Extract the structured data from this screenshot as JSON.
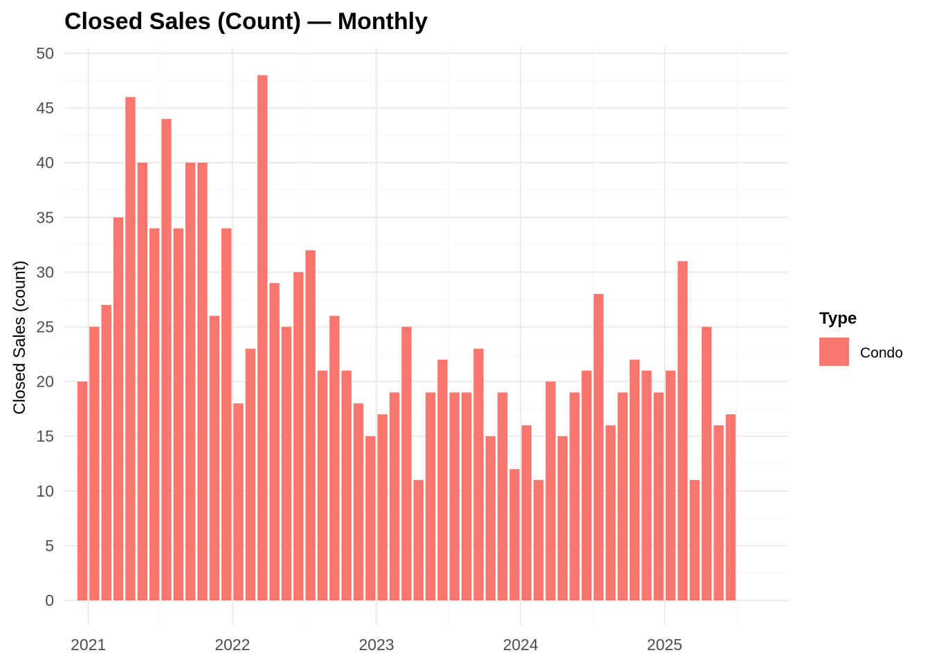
{
  "chart_data": {
    "type": "bar",
    "title": "Closed Sales (Count) — Monthly",
    "xlabel": "",
    "ylabel": "Closed Sales (count)",
    "ylim": [
      0,
      50
    ],
    "y_ticks": [
      0,
      5,
      10,
      15,
      20,
      25,
      30,
      35,
      40,
      45,
      50
    ],
    "x_ticks": [
      "2021",
      "2022",
      "2023",
      "2024",
      "2025"
    ],
    "x_range": [
      "2020-11",
      "2025-07"
    ],
    "grid": true,
    "legend": {
      "title": "Type",
      "position": "right",
      "entries": [
        "Condo"
      ]
    },
    "colors": {
      "Condo": "#F8766D"
    },
    "categories": [
      "2020-12",
      "2021-01",
      "2021-02",
      "2021-03",
      "2021-04",
      "2021-05",
      "2021-06",
      "2021-07",
      "2021-08",
      "2021-09",
      "2021-10",
      "2021-11",
      "2021-12",
      "2022-01",
      "2022-02",
      "2022-03",
      "2022-04",
      "2022-05",
      "2022-06",
      "2022-07",
      "2022-08",
      "2022-09",
      "2022-10",
      "2022-11",
      "2022-12",
      "2023-01",
      "2023-02",
      "2023-03",
      "2023-04",
      "2023-05",
      "2023-06",
      "2023-07",
      "2023-08",
      "2023-09",
      "2023-10",
      "2023-11",
      "2023-12",
      "2024-01",
      "2024-02",
      "2024-03",
      "2024-04",
      "2024-05",
      "2024-06",
      "2024-07",
      "2024-08",
      "2024-09",
      "2024-10",
      "2024-11",
      "2024-12",
      "2025-01",
      "2025-02",
      "2025-03",
      "2025-04",
      "2025-05",
      "2025-06"
    ],
    "series": [
      {
        "name": "Condo",
        "values": [
          20,
          25,
          27,
          35,
          46,
          40,
          34,
          44,
          34,
          40,
          40,
          26,
          34,
          18,
          23,
          48,
          29,
          25,
          30,
          32,
          21,
          26,
          21,
          18,
          15,
          17,
          19,
          25,
          11,
          19,
          22,
          19,
          19,
          23,
          15,
          19,
          12,
          16,
          11,
          20,
          15,
          19,
          21,
          28,
          16,
          19,
          22,
          21,
          19,
          21,
          31,
          11,
          25,
          16,
          17
        ]
      }
    ]
  }
}
